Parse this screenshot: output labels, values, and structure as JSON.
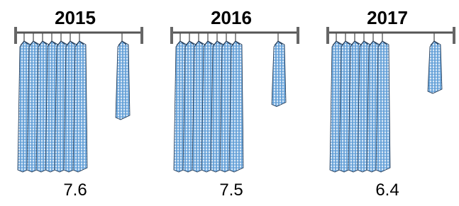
{
  "chart_data": {
    "type": "pictogram",
    "categories": [
      "2015",
      "2016",
      "2017"
    ],
    "values": [
      7.6,
      7.5,
      6.4
    ],
    "color": "#5b9bd5"
  }
}
